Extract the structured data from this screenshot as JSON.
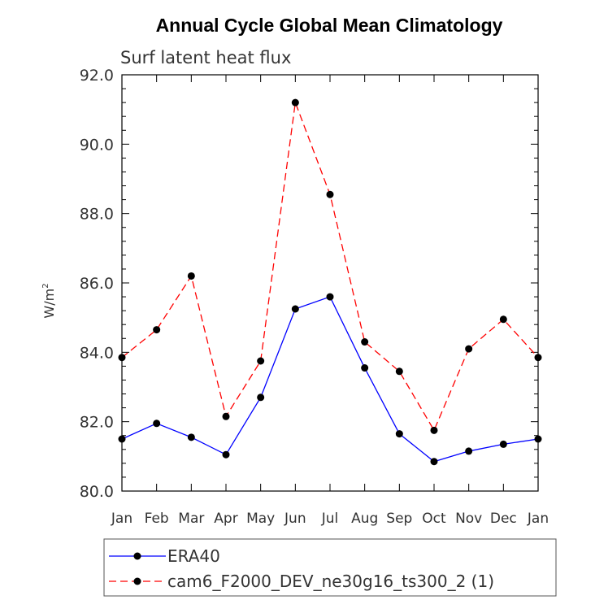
{
  "chart_data": {
    "type": "line",
    "title": "Annual Cycle Global Mean Climatology",
    "subtitle": "Surf latent heat flux",
    "ylabel": "W/m",
    "ylabel_superscript": "2",
    "categories": [
      "Jan",
      "Feb",
      "Mar",
      "Apr",
      "May",
      "Jun",
      "Jul",
      "Aug",
      "Sep",
      "Oct",
      "Nov",
      "Dec",
      "Jan"
    ],
    "ylim": [
      80.0,
      92.0
    ],
    "yticks": [
      "80.0",
      "82.0",
      "84.0",
      "86.0",
      "88.0",
      "90.0",
      "92.0"
    ],
    "grid": false,
    "legend_position": "bottom",
    "series": [
      {
        "name": "ERA40",
        "color": "#0000ff",
        "line_style": "solid",
        "marker": "filled-circle",
        "values": [
          81.5,
          81.95,
          81.55,
          81.05,
          82.7,
          85.25,
          85.6,
          83.55,
          81.65,
          80.85,
          81.15,
          81.35,
          81.5
        ]
      },
      {
        "name": "cam6_F2000_DEV_ne30g16_ts300_2 (1)",
        "color": "#ff0000",
        "line_style": "dashed",
        "marker": "filled-circle",
        "values": [
          83.85,
          84.65,
          86.2,
          82.15,
          83.75,
          91.2,
          88.55,
          84.3,
          83.45,
          81.75,
          84.1,
          84.95,
          83.85
        ]
      }
    ]
  }
}
